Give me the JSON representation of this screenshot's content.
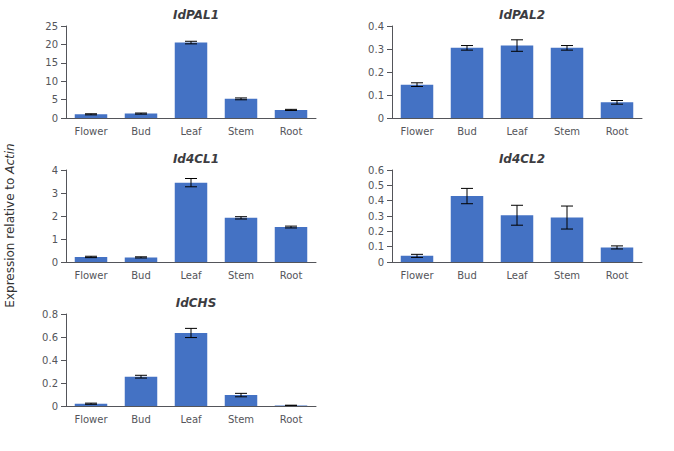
{
  "chart_data": [
    {
      "type": "bar",
      "title": "IdPAL1",
      "categories": [
        "Flower",
        "Bud",
        "Leaf",
        "Stem",
        "Root"
      ],
      "values": [
        1.0,
        1.2,
        20.5,
        5.2,
        2.2
      ],
      "errors": [
        0.15,
        0.15,
        0.35,
        0.25,
        0.15
      ],
      "ylim": [
        0,
        25
      ],
      "yticks": [
        0,
        5,
        10,
        15,
        20,
        25
      ],
      "color": "#4472C4",
      "grid": false
    },
    {
      "type": "bar",
      "title": "IdPAL2",
      "categories": [
        "Flower",
        "Bud",
        "Leaf",
        "Stem",
        "Root"
      ],
      "values": [
        0.145,
        0.305,
        0.315,
        0.305,
        0.068
      ],
      "errors": [
        0.008,
        0.01,
        0.025,
        0.01,
        0.008
      ],
      "ylim": [
        0,
        0.4
      ],
      "yticks": [
        0,
        0.1,
        0.2,
        0.3,
        0.4
      ],
      "color": "#4472C4",
      "grid": false
    },
    {
      "type": "bar",
      "title": "Id4CL1",
      "categories": [
        "Flower",
        "Bud",
        "Leaf",
        "Stem",
        "Root"
      ],
      "values": [
        0.22,
        0.2,
        3.45,
        1.92,
        1.52
      ],
      "errors": [
        0.03,
        0.025,
        0.18,
        0.05,
        0.04
      ],
      "ylim": [
        0,
        4
      ],
      "yticks": [
        0,
        1,
        2,
        3,
        4
      ],
      "color": "#4472C4",
      "grid": false
    },
    {
      "type": "bar",
      "title": "Id4CL2",
      "categories": [
        "Flower",
        "Bud",
        "Leaf",
        "Stem",
        "Root"
      ],
      "values": [
        0.04,
        0.43,
        0.305,
        0.29,
        0.095
      ],
      "errors": [
        0.01,
        0.05,
        0.065,
        0.075,
        0.01
      ],
      "ylim": [
        0,
        0.6
      ],
      "yticks": [
        0,
        0.1,
        0.2,
        0.3,
        0.4,
        0.5,
        0.6
      ],
      "color": "#4472C4",
      "grid": false
    },
    {
      "type": "bar",
      "title": "IdCHS",
      "categories": [
        "Flower",
        "Bud",
        "Leaf",
        "Stem",
        "Root"
      ],
      "values": [
        0.02,
        0.255,
        0.635,
        0.095,
        0.005
      ],
      "errors": [
        0.005,
        0.012,
        0.04,
        0.015,
        0.002
      ],
      "ylim": [
        0,
        0.8
      ],
      "yticks": [
        0,
        0.2,
        0.4,
        0.6,
        0.8
      ],
      "color": "#4472C4",
      "grid": false
    }
  ],
  "ylabel": "Expression relative to Actin"
}
